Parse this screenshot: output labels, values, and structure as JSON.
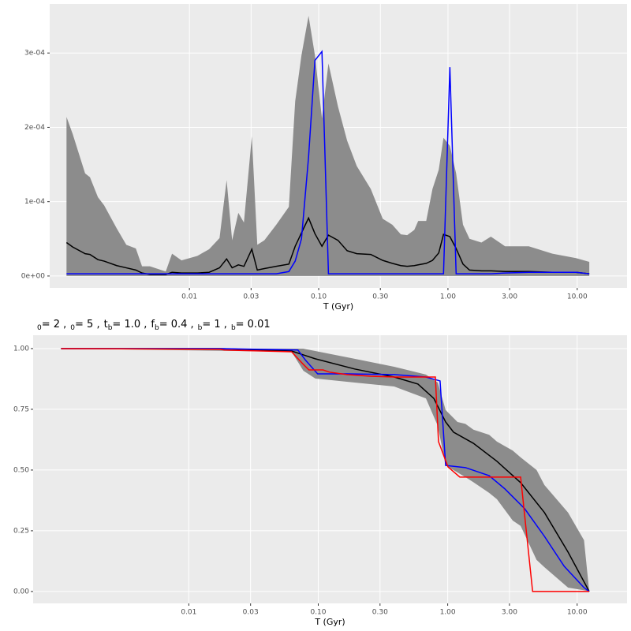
{
  "chart_data": [
    {
      "type": "line",
      "x_label": "T (Gyr)",
      "xlog": true,
      "grid": true,
      "xlim": [
        0.00083,
        24.3
      ],
      "ylim": [
        -1.6e-05,
        0.000366
      ],
      "xticks": [
        0.01,
        0.03,
        {
          "value": 0.1,
          "label": "0.10"
        },
        {
          "value": 0.3,
          "label": "0.30"
        },
        {
          "value": 1,
          "label": "1.00"
        },
        {
          "value": 3,
          "label": "3.00"
        },
        {
          "value": 10,
          "label": "10.00"
        }
      ],
      "yticks": [
        {
          "value": 0,
          "label": "0e+00"
        },
        {
          "value": 0.0001,
          "label": "1e-04"
        },
        {
          "value": 0.0002,
          "label": "2e-04"
        },
        {
          "value": 0.0003,
          "label": "3e-04"
        }
      ],
      "x": [
        0.00112,
        0.00125,
        0.00156,
        0.0017,
        0.00196,
        0.00219,
        0.00274,
        0.00325,
        0.00385,
        0.0043,
        0.00495,
        0.00656,
        0.00734,
        0.00869,
        0.0115,
        0.0142,
        0.0171,
        0.0194,
        0.0214,
        0.0239,
        0.0264,
        0.0304,
        0.0335,
        0.038,
        0.047,
        0.0588,
        0.0658,
        0.0736,
        0.0835,
        0.0935,
        0.106,
        0.119,
        0.141,
        0.166,
        0.197,
        0.253,
        0.313,
        0.371,
        0.432,
        0.484,
        0.549,
        0.589,
        0.679,
        0.759,
        0.849,
        0.924,
        1.035,
        1.157,
        1.307,
        1.468,
        1.815,
        2.148,
        2.766,
        4.22,
        6.43,
        9.79,
        12.4
      ],
      "band": {
        "color": "#8c8c8c",
        "upper": [
          0.000214,
          0.000191,
          0.000138,
          0.000133,
          0.000106,
          9.5e-05,
          6.4e-05,
          4.2e-05,
          3.7e-05,
          1.3e-05,
          1.3e-05,
          6e-06,
          3e-05,
          2.1e-05,
          2.7e-05,
          3.6e-05,
          5.1e-05,
          0.000129,
          4.8e-05,
          8.5e-05,
          7.2e-05,
          0.000188,
          4.2e-05,
          4.8e-05,
          6.9e-05,
          9.3e-05,
          0.000235,
          0.000297,
          0.00035,
          0.000297,
          0.000212,
          0.000286,
          0.000228,
          0.000182,
          0.000148,
          0.000117,
          7.7e-05,
          6.9e-05,
          5.6e-05,
          5.5e-05,
          6.2e-05,
          7.4e-05,
          7.4e-05,
          0.000117,
          0.000143,
          0.000186,
          0.000175,
          0.000138,
          6.9e-05,
          5e-05,
          4.5e-05,
          5.3e-05,
          4e-05,
          4e-05,
          3e-05,
          2.4e-05,
          1.9e-05
        ],
        "lower": [
          0,
          0,
          0,
          0,
          0,
          0,
          0,
          0,
          0,
          0,
          0,
          0,
          0,
          0,
          0,
          0,
          0,
          0,
          0,
          0,
          0,
          0,
          0,
          0,
          0,
          0,
          0,
          0,
          0,
          0,
          0,
          0,
          0,
          0,
          0,
          0,
          0,
          0,
          0,
          0,
          0,
          0,
          0,
          0,
          0,
          0,
          0,
          0,
          0,
          0,
          0,
          0,
          0,
          0,
          0,
          0,
          0
        ]
      },
      "series": [
        {
          "color": "#000000",
          "values": [
            4.5e-05,
            3.9e-05,
            3e-05,
            2.9e-05,
            2.2e-05,
            2e-05,
            1.4e-05,
            1.1e-05,
            8e-06,
            4e-06,
            2e-06,
            2e-06,
            5e-06,
            4e-06,
            4e-06,
            5e-06,
            1.1e-05,
            2.3e-05,
            1.1e-05,
            1.5e-05,
            1.3e-05,
            3.6e-05,
            8e-06,
            1e-05,
            1.3e-05,
            1.6e-05,
            4e-05,
            5.8e-05,
            7.8e-05,
            5.7e-05,
            4e-05,
            5.5e-05,
            4.8e-05,
            3.4e-05,
            3e-05,
            2.9e-05,
            2.1e-05,
            1.7e-05,
            1.4e-05,
            1.3e-05,
            1.4e-05,
            1.5e-05,
            1.7e-05,
            2.1e-05,
            3.1e-05,
            5.6e-05,
            5.3e-05,
            3.7e-05,
            1.6e-05,
            8e-06,
            7e-06,
            7e-06,
            6e-06,
            6e-06,
            5e-06,
            5e-06,
            3e-06
          ]
        },
        {
          "color": "#0000ff",
          "values": [
            3e-06,
            3e-06,
            3e-06,
            3e-06,
            3e-06,
            3e-06,
            3e-06,
            3e-06,
            3e-06,
            3e-06,
            3e-06,
            3e-06,
            3e-06,
            3e-06,
            3e-06,
            3e-06,
            3e-06,
            3e-06,
            3e-06,
            3e-06,
            3e-06,
            3e-06,
            3e-06,
            3e-06,
            3e-06,
            6e-06,
            2e-05,
            5e-05,
            0.00016,
            0.00029,
            0.000302,
            3e-06,
            3e-06,
            3e-06,
            3e-06,
            3e-06,
            3e-06,
            3e-06,
            3e-06,
            3e-06,
            3e-06,
            3e-06,
            3e-06,
            3e-06,
            3e-06,
            3e-06,
            0.000281,
            3e-06,
            3e-06,
            3e-06,
            3e-06,
            3e-06,
            4e-06,
            5e-06,
            5e-06,
            5e-06,
            3e-06
          ]
        }
      ]
    },
    {
      "type": "line",
      "x_label": "T (Gyr)",
      "xlog": true,
      "grid": true,
      "title": [
        {
          "sub": "0",
          "text": "= 2 ,"
        },
        {
          "sub": "0",
          "text": "= 5 ,"
        },
        {
          "base": "t",
          "sub": "b",
          "text": "= 1.0 ,"
        },
        {
          "base": "f",
          "sub": "b",
          "text": "= 0.4 ,"
        },
        {
          "sub": "b",
          "text": "= 1 ,"
        },
        {
          "sub": "b",
          "text": "= 0.01"
        }
      ],
      "xlim": [
        0.000627,
        24.3
      ],
      "ylim": [
        -0.049,
        1.055
      ],
      "xticks": [
        0.01,
        0.03,
        {
          "value": 0.1,
          "label": "0.10"
        },
        {
          "value": 0.3,
          "label": "0.30"
        },
        {
          "value": 1,
          "label": "1.00"
        },
        {
          "value": 3,
          "label": "3.00"
        },
        {
          "value": 10,
          "label": "10.00"
        }
      ],
      "yticks": [
        {
          "value": 0,
          "label": "0.00"
        },
        {
          "value": 0.25,
          "label": "0.25"
        },
        {
          "value": 0.5,
          "label": "0.50"
        },
        {
          "value": 0.75,
          "label": "0.75"
        },
        {
          "value": 1,
          "label": "1.00"
        }
      ],
      "band": {
        "color": "#8c8c8c",
        "x": [
          0.00103,
          0.0622,
          0.0767,
          0.0948,
          0.191,
          0.386,
          0.679,
          0.838,
          0.964,
          1.19,
          1.37,
          1.58,
          2.09,
          2.4,
          3.18,
          3.66,
          4.86,
          5.59,
          8.51,
          11.3,
          12.4
        ],
        "upper": [
          1,
          1,
          1,
          0.99,
          0.958,
          0.925,
          0.893,
          0.86,
          0.747,
          0.698,
          0.69,
          0.666,
          0.645,
          0.617,
          0.58,
          0.552,
          0.5,
          0.438,
          0.325,
          0.211,
          0
        ],
        "lower": [
          1,
          0.987,
          0.909,
          0.877,
          0.86,
          0.844,
          0.795,
          0.682,
          0.519,
          0.49,
          0.471,
          0.45,
          0.406,
          0.38,
          0.292,
          0.27,
          0.13,
          0.1,
          0.016,
          0.005,
          0
        ]
      },
      "series": [
        {
          "color": "#000000",
          "x": [
            0.00103,
            0.01754,
            0.0622,
            0.0948,
            0.191,
            0.386,
            0.589,
            0.781,
            0.964,
            1.109,
            1.58,
            2.4,
            3.66,
            5.59,
            8.51,
            12.4
          ],
          "values": [
            1,
            1,
            0.99,
            0.958,
            0.916,
            0.883,
            0.854,
            0.795,
            0.698,
            0.656,
            0.61,
            0.536,
            0.448,
            0.325,
            0.162,
            0
          ]
        },
        {
          "color": "#0000ff",
          "x": [
            0.00103,
            0.01754,
            0.0696,
            0.0801,
            0.0989,
            0.166,
            0.386,
            0.679,
            0.873,
            0.964,
            1.37,
            2.09,
            2.77,
            3.93,
            5.59,
            7.94,
            11.3,
            12.4
          ],
          "values": [
            1,
            1,
            0.994,
            0.951,
            0.896,
            0.896,
            0.893,
            0.883,
            0.867,
            0.519,
            0.51,
            0.477,
            0.422,
            0.341,
            0.227,
            0.104,
            0.016,
            0
          ]
        },
        {
          "color": "#ff0000",
          "x": [
            0.00103,
            0.01754,
            0.0188,
            0.0622,
            0.0767,
            0.0847,
            0.109,
            0.122,
            0.166,
            0.253,
            0.386,
            0.803,
            0.849,
            1.005,
            1.24,
            2.09,
            3.66,
            4.53,
            12.4
          ],
          "values": [
            1,
            0.997,
            0.994,
            0.987,
            0.935,
            0.912,
            0.912,
            0.903,
            0.893,
            0.886,
            0.883,
            0.883,
            0.617,
            0.513,
            0.471,
            0.471,
            0.471,
            0,
            0
          ]
        }
      ]
    }
  ]
}
